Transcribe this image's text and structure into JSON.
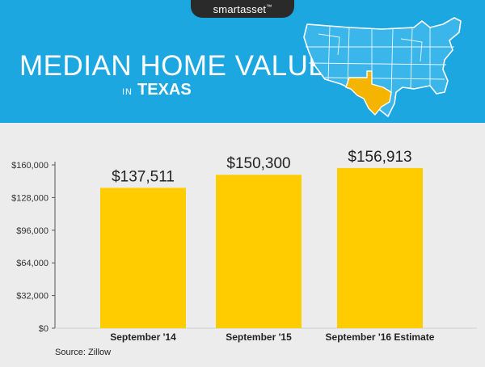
{
  "header": {
    "brand": "smartasset",
    "brand_mark": "™",
    "title": "MEDIAN HOME VALUE",
    "subtitle_prefix": "IN",
    "subtitle_state": "TEXAS"
  },
  "colors": {
    "header_bg": "#1ca7e1",
    "bar": "#ffcc00",
    "highlight_state": "#f5b400",
    "map_fill": "#3ab6ea",
    "map_outline": "#ffffff"
  },
  "chart_data": {
    "type": "bar",
    "categories": [
      "September '14",
      "September '15",
      "September '16 Estimate"
    ],
    "values": [
      137511,
      150300,
      156913
    ],
    "data_labels": [
      "$137,511",
      "$150,300",
      "$156,913"
    ],
    "y_ticks": [
      0,
      32000,
      64000,
      96000,
      128000,
      160000
    ],
    "y_tick_labels": [
      "$0",
      "$32,000",
      "$64,000",
      "$96,000",
      "$128,000",
      "$160,000"
    ],
    "ylim": [
      0,
      160000
    ],
    "grid": false,
    "source": "Source: Zillow"
  }
}
